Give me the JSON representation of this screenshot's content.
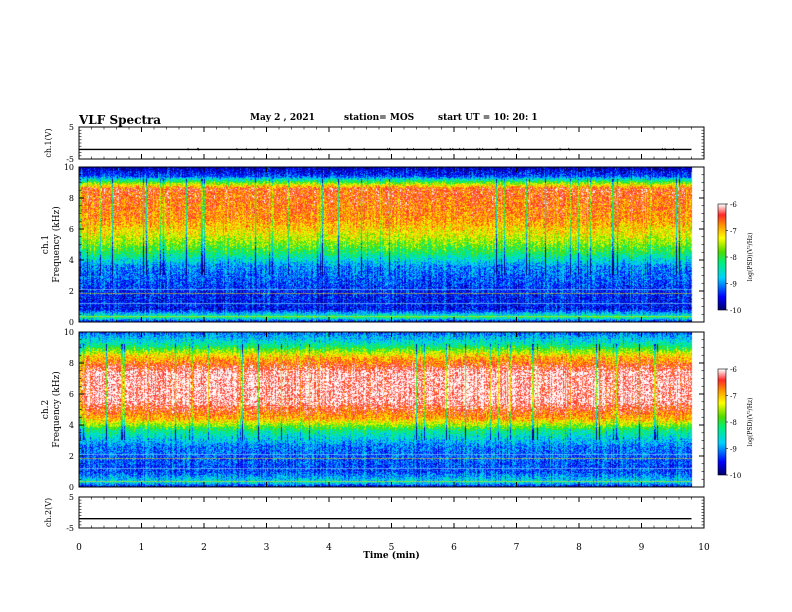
{
  "header": {
    "title": "VLF Spectra",
    "date": "May 2 , 2021",
    "station": "station= MOS",
    "start_ut": "start  UT =   10: 20: 1"
  },
  "chart_data": [
    {
      "type": "line",
      "name": "waveform-ch1",
      "ylabel": "ch.1(V)",
      "ylim": [
        -5,
        5
      ],
      "yticks": [
        "5",
        "-5"
      ],
      "xlim": [
        0,
        10
      ],
      "level": -2
    },
    {
      "type": "heatmap",
      "name": "spectrogram-ch1",
      "ylabel_lines": [
        "ch.1",
        "Frequency (kHz)"
      ],
      "ylim": [
        0,
        10
      ],
      "yticks": [
        "0",
        "2",
        "4",
        "6",
        "8",
        "10"
      ],
      "xlim": [
        0,
        10
      ],
      "data_end_min": 9.8,
      "colorbar": {
        "label": "log(PSD)(V²/Hz)",
        "ticks": [
          "-6",
          "-7",
          "-8",
          "-9",
          "-10"
        ],
        "range": [
          -10,
          -6
        ]
      },
      "band_profile": [
        {
          "f": 0.0,
          "v": -9.6
        },
        {
          "f": 0.3,
          "v": -8.2
        },
        {
          "f": 0.8,
          "v": -9.5
        },
        {
          "f": 2.0,
          "v": -9.4
        },
        {
          "f": 3.6,
          "v": -9.0
        },
        {
          "f": 4.6,
          "v": -8.0
        },
        {
          "f": 5.6,
          "v": -7.3
        },
        {
          "f": 6.6,
          "v": -6.8
        },
        {
          "f": 8.6,
          "v": -6.5
        },
        {
          "f": 9.0,
          "v": -7.8
        },
        {
          "f": 9.4,
          "v": -9.3
        },
        {
          "f": 10.0,
          "v": -9.8
        }
      ]
    },
    {
      "type": "heatmap",
      "name": "spectrogram-ch2",
      "ylabel_lines": [
        "ch.2",
        "Frequency (kHz)"
      ],
      "ylim": [
        0,
        10
      ],
      "yticks": [
        "0",
        "2",
        "4",
        "6",
        "8",
        "10"
      ],
      "xlim": [
        0,
        10
      ],
      "data_end_min": 9.8,
      "colorbar": {
        "label": "log(PSD)(V²/Hz)",
        "ticks": [
          "-6",
          "-7",
          "-8",
          "-9",
          "-10"
        ],
        "range": [
          -10,
          -6
        ]
      },
      "band_profile": [
        {
          "f": 0.0,
          "v": -9.6
        },
        {
          "f": 0.3,
          "v": -8.6
        },
        {
          "f": 1.0,
          "v": -9.3
        },
        {
          "f": 2.6,
          "v": -9.1
        },
        {
          "f": 3.6,
          "v": -8.3
        },
        {
          "f": 4.4,
          "v": -6.9
        },
        {
          "f": 5.5,
          "v": -6.1
        },
        {
          "f": 7.4,
          "v": -6.1
        },
        {
          "f": 8.4,
          "v": -7.0
        },
        {
          "f": 9.2,
          "v": -8.4
        },
        {
          "f": 10.0,
          "v": -9.2
        }
      ]
    },
    {
      "type": "line",
      "name": "waveform-ch2",
      "ylabel": "ch.2(V)",
      "ylim": [
        -5,
        5
      ],
      "yticks": [
        "5",
        "-5"
      ],
      "xlim": [
        0,
        10
      ],
      "level": -2,
      "xlabel": "Time  (min)",
      "xticks": [
        "0",
        "1",
        "2",
        "3",
        "4",
        "5",
        "6",
        "7",
        "8",
        "9",
        "10"
      ]
    }
  ]
}
